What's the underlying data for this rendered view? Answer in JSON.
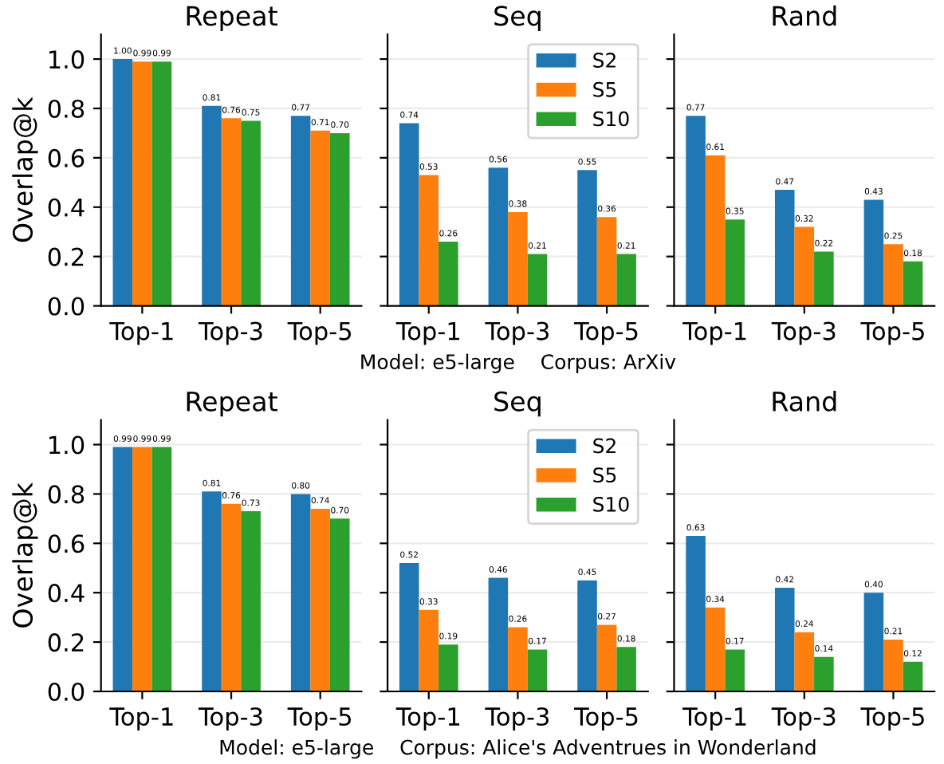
{
  "chart_data": [
    {
      "type": "bar",
      "title": "Repeat",
      "ylabel": "Overlap@k",
      "categories": [
        "Top-1",
        "Top-3",
        "Top-5"
      ],
      "ylim": [
        0,
        1.1
      ],
      "yticks": [
        {
          "value": 0,
          "label": "0.0"
        },
        {
          "value": 0.2,
          "label": "0.2"
        },
        {
          "value": 0.4,
          "label": "0.4"
        },
        {
          "value": 0.6,
          "label": "0.6"
        },
        {
          "value": 0.8,
          "label": "0.8"
        },
        {
          "value": 1.0,
          "label": "1.0"
        }
      ],
      "grid": "y",
      "series": [
        {
          "color": "#1f77b4",
          "values": [
            1.0,
            0.81,
            0.77
          ],
          "value_labels": [
            "1.00",
            "0.81",
            "0.77"
          ]
        },
        {
          "color": "#ff7f0e",
          "values": [
            0.99,
            0.76,
            0.71
          ],
          "value_labels": [
            "0.99",
            "0.76",
            "0.71"
          ]
        },
        {
          "color": "#2ca02c",
          "values": [
            0.99,
            0.75,
            0.7
          ],
          "value_labels": [
            "0.99",
            "0.75",
            "0.70"
          ]
        }
      ]
    },
    {
      "type": "bar",
      "title": "Seq",
      "xlabel": "Model: e5-large    Corpus: ArXiv",
      "categories": [
        "Top-1",
        "Top-3",
        "Top-5"
      ],
      "ylim": [
        0,
        1.1
      ],
      "yticks": [
        {
          "value": 0,
          "label": null
        },
        {
          "value": 0.2,
          "label": null
        },
        {
          "value": 0.4,
          "label": null
        },
        {
          "value": 0.6,
          "label": null
        },
        {
          "value": 0.8,
          "label": null
        },
        {
          "value": 1.0,
          "label": null
        }
      ],
      "tick_labels": "x",
      "grid": "y",
      "legend": "top right",
      "series": [
        {
          "name": "S2",
          "color": "#1f77b4",
          "values": [
            0.74,
            0.56,
            0.55
          ],
          "value_labels": [
            "0.74",
            "0.56",
            "0.55"
          ]
        },
        {
          "name": "S5",
          "color": "#ff7f0e",
          "values": [
            0.53,
            0.38,
            0.36
          ],
          "value_labels": [
            "0.53",
            "0.38",
            "0.36"
          ]
        },
        {
          "name": "S10",
          "color": "#2ca02c",
          "values": [
            0.26,
            0.21,
            0.21
          ],
          "value_labels": [
            "0.26",
            "0.21",
            "0.21"
          ]
        }
      ]
    },
    {
      "type": "bar",
      "title": "Rand",
      "categories": [
        "Top-1",
        "Top-3",
        "Top-5"
      ],
      "ylim": [
        0,
        1.1
      ],
      "yticks": [
        {
          "value": 0,
          "label": null
        },
        {
          "value": 0.2,
          "label": null
        },
        {
          "value": 0.4,
          "label": null
        },
        {
          "value": 0.6,
          "label": null
        },
        {
          "value": 0.8,
          "label": null
        },
        {
          "value": 1.0,
          "label": null
        }
      ],
      "tick_labels": "x",
      "grid": "y",
      "series": [
        {
          "color": "#1f77b4",
          "values": [
            0.77,
            0.47,
            0.43
          ],
          "value_labels": [
            "0.77",
            "0.47",
            "0.43"
          ]
        },
        {
          "color": "#ff7f0e",
          "values": [
            0.61,
            0.32,
            0.25
          ],
          "value_labels": [
            "0.61",
            "0.32",
            "0.25"
          ]
        },
        {
          "color": "#2ca02c",
          "values": [
            0.35,
            0.22,
            0.18
          ],
          "value_labels": [
            "0.35",
            "0.22",
            "0.18"
          ]
        }
      ]
    },
    {
      "type": "bar",
      "title": "Repeat",
      "ylabel": "Overlap@k",
      "categories": [
        "Top-1",
        "Top-3",
        "Top-5"
      ],
      "ylim": [
        0,
        1.1
      ],
      "yticks": [
        {
          "value": 0,
          "label": "0.0"
        },
        {
          "value": 0.2,
          "label": "0.2"
        },
        {
          "value": 0.4,
          "label": "0.4"
        },
        {
          "value": 0.6,
          "label": "0.6"
        },
        {
          "value": 0.8,
          "label": "0.8"
        },
        {
          "value": 1.0,
          "label": "1.0"
        }
      ],
      "grid": "y",
      "series": [
        {
          "color": "#1f77b4",
          "values": [
            0.99,
            0.81,
            0.8
          ],
          "value_labels": [
            "0.99",
            "0.81",
            "0.80"
          ]
        },
        {
          "color": "#ff7f0e",
          "values": [
            0.99,
            0.76,
            0.74
          ],
          "value_labels": [
            "0.99",
            "0.76",
            "0.74"
          ]
        },
        {
          "color": "#2ca02c",
          "values": [
            0.99,
            0.73,
            0.7
          ],
          "value_labels": [
            "0.99",
            "0.73",
            "0.70"
          ]
        }
      ]
    },
    {
      "type": "bar",
      "title": "Seq",
      "xlabel": "Model: e5-large    Corpus: Alice's Adventrues in Wonderland",
      "categories": [
        "Top-1",
        "Top-3",
        "Top-5"
      ],
      "ylim": [
        0,
        1.1
      ],
      "yticks": [
        {
          "value": 0,
          "label": null
        },
        {
          "value": 0.2,
          "label": null
        },
        {
          "value": 0.4,
          "label": null
        },
        {
          "value": 0.6,
          "label": null
        },
        {
          "value": 0.8,
          "label": null
        },
        {
          "value": 1.0,
          "label": null
        }
      ],
      "tick_labels": "x",
      "grid": "y",
      "legend": "top right",
      "series": [
        {
          "name": "S2",
          "color": "#1f77b4",
          "values": [
            0.52,
            0.46,
            0.45
          ],
          "value_labels": [
            "0.52",
            "0.46",
            "0.45"
          ]
        },
        {
          "name": "S5",
          "color": "#ff7f0e",
          "values": [
            0.33,
            0.26,
            0.27
          ],
          "value_labels": [
            "0.33",
            "0.26",
            "0.27"
          ]
        },
        {
          "name": "S10",
          "color": "#2ca02c",
          "values": [
            0.19,
            0.17,
            0.18
          ],
          "value_labels": [
            "0.19",
            "0.17",
            "0.18"
          ]
        }
      ]
    },
    {
      "type": "bar",
      "title": "Rand",
      "categories": [
        "Top-1",
        "Top-3",
        "Top-5"
      ],
      "ylim": [
        0,
        1.1
      ],
      "yticks": [
        {
          "value": 0,
          "label": null
        },
        {
          "value": 0.2,
          "label": null
        },
        {
          "value": 0.4,
          "label": null
        },
        {
          "value": 0.6,
          "label": null
        },
        {
          "value": 0.8,
          "label": null
        },
        {
          "value": 1.0,
          "label": null
        }
      ],
      "tick_labels": "x",
      "grid": "y",
      "series": [
        {
          "color": "#1f77b4",
          "values": [
            0.63,
            0.42,
            0.4
          ],
          "value_labels": [
            "0.63",
            "0.42",
            "0.40"
          ]
        },
        {
          "color": "#ff7f0e",
          "values": [
            0.34,
            0.24,
            0.21
          ],
          "value_labels": [
            "0.34",
            "0.24",
            "0.21"
          ]
        },
        {
          "color": "#2ca02c",
          "values": [
            0.17,
            0.14,
            0.12
          ],
          "value_labels": [
            "0.17",
            "0.14",
            "0.12"
          ]
        }
      ]
    }
  ]
}
